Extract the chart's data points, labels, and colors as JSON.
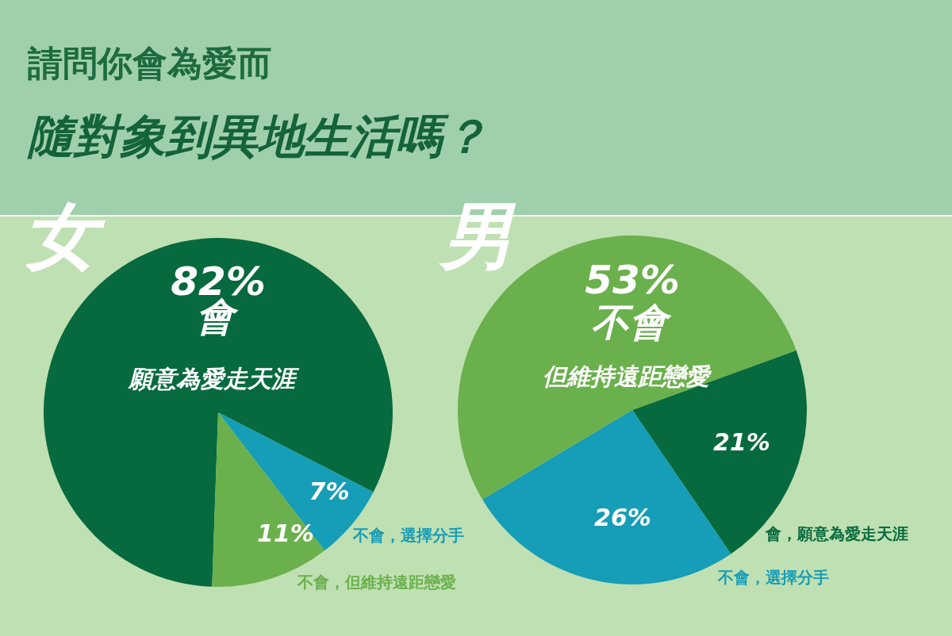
{
  "chart_data": [
    {
      "type": "pie",
      "title": "女",
      "annotations": [
        "請問你會為愛而",
        "隨對象到異地生活嗎？",
        "願意為愛走天涯"
      ],
      "categories": [
        "會",
        "不會，選擇分手",
        "不會，但維持遠距戀愛"
      ],
      "values": [
        82,
        7,
        11
      ],
      "value_labels": [
        "82%",
        "7%",
        "11%"
      ],
      "colors": [
        "#066a3e",
        "#169db7",
        "#6ab04c"
      ]
    },
    {
      "type": "pie",
      "title": "男",
      "annotations": [
        "但維持遠距戀愛"
      ],
      "categories": [
        "會，願意為愛走天涯",
        "不會，選擇分手",
        "不會"
      ],
      "values": [
        21,
        26,
        53
      ],
      "value_labels": [
        "21%",
        "26%",
        "53%"
      ],
      "colors": [
        "#066a3e",
        "#169db7",
        "#6ab04c"
      ]
    }
  ]
}
